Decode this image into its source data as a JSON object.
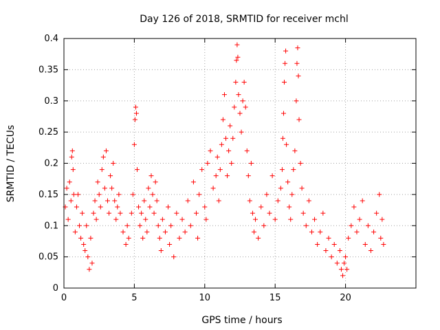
{
  "chart_data": {
    "type": "scatter",
    "title": "Day 126 of 2018, SRMTID for receiver mchl",
    "xlabel": "GPS time / hours",
    "ylabel": "SRMTID / TECUs",
    "xlim": [
      0,
      25
    ],
    "ylim": [
      0,
      0.4
    ],
    "x_ticks": [
      0,
      5,
      10,
      15,
      20
    ],
    "x_tick_labels": [
      "0",
      "5",
      "10",
      "15",
      "20"
    ],
    "y_ticks": [
      0,
      0.05,
      0.1,
      0.15,
      0.2,
      0.25,
      0.3,
      0.35,
      0.4
    ],
    "y_tick_labels": [
      "0",
      "0.05",
      "0.1",
      "0.15",
      "0.2",
      "0.25",
      "0.3",
      "0.35",
      "0.4"
    ],
    "grid": true,
    "legend": "none",
    "marker": "+",
    "colors": {
      "marker": "#ff0000",
      "grid": "#a0a0a0",
      "axis": "#000000"
    },
    "series": [
      {
        "name": "SRMTID",
        "points": [
          [
            0.1,
            0.13
          ],
          [
            0.2,
            0.16
          ],
          [
            0.3,
            0.11
          ],
          [
            0.4,
            0.17
          ],
          [
            0.5,
            0.14
          ],
          [
            0.55,
            0.21
          ],
          [
            0.6,
            0.22
          ],
          [
            0.65,
            0.19
          ],
          [
            0.7,
            0.15
          ],
          [
            0.8,
            0.09
          ],
          [
            0.9,
            0.13
          ],
          [
            1.0,
            0.15
          ],
          [
            1.1,
            0.1
          ],
          [
            1.2,
            0.08
          ],
          [
            1.3,
            0.12
          ],
          [
            1.4,
            0.07
          ],
          [
            1.5,
            0.06
          ],
          [
            1.6,
            0.1
          ],
          [
            1.7,
            0.05
          ],
          [
            1.8,
            0.03
          ],
          [
            1.9,
            0.08
          ],
          [
            2.0,
            0.04
          ],
          [
            2.1,
            0.12
          ],
          [
            2.2,
            0.14
          ],
          [
            2.3,
            0.11
          ],
          [
            2.4,
            0.17
          ],
          [
            2.5,
            0.15
          ],
          [
            2.6,
            0.13
          ],
          [
            2.7,
            0.19
          ],
          [
            2.8,
            0.21
          ],
          [
            2.9,
            0.16
          ],
          [
            3.0,
            0.22
          ],
          [
            3.1,
            0.14
          ],
          [
            3.2,
            0.12
          ],
          [
            3.3,
            0.18
          ],
          [
            3.4,
            0.16
          ],
          [
            3.5,
            0.2
          ],
          [
            3.6,
            0.14
          ],
          [
            3.7,
            0.11
          ],
          [
            3.8,
            0.13
          ],
          [
            3.9,
            0.15
          ],
          [
            4.0,
            0.12
          ],
          [
            4.2,
            0.09
          ],
          [
            4.4,
            0.07
          ],
          [
            4.5,
            0.1
          ],
          [
            4.6,
            0.08
          ],
          [
            4.8,
            0.12
          ],
          [
            4.9,
            0.15
          ],
          [
            5.0,
            0.23
          ],
          [
            5.05,
            0.27
          ],
          [
            5.1,
            0.29
          ],
          [
            5.15,
            0.28
          ],
          [
            5.2,
            0.19
          ],
          [
            5.3,
            0.13
          ],
          [
            5.4,
            0.1
          ],
          [
            5.5,
            0.12
          ],
          [
            5.6,
            0.08
          ],
          [
            5.7,
            0.14
          ],
          [
            5.8,
            0.11
          ],
          [
            5.9,
            0.09
          ],
          [
            6.0,
            0.16
          ],
          [
            6.1,
            0.13
          ],
          [
            6.2,
            0.18
          ],
          [
            6.3,
            0.15
          ],
          [
            6.4,
            0.12
          ],
          [
            6.5,
            0.17
          ],
          [
            6.6,
            0.14
          ],
          [
            6.7,
            0.1
          ],
          [
            6.8,
            0.08
          ],
          [
            6.9,
            0.06
          ],
          [
            7.0,
            0.11
          ],
          [
            7.2,
            0.09
          ],
          [
            7.4,
            0.13
          ],
          [
            7.5,
            0.07
          ],
          [
            7.6,
            0.1
          ],
          [
            7.8,
            0.05
          ],
          [
            8.0,
            0.12
          ],
          [
            8.2,
            0.08
          ],
          [
            8.4,
            0.11
          ],
          [
            8.6,
            0.09
          ],
          [
            8.8,
            0.14
          ],
          [
            9.0,
            0.1
          ],
          [
            9.2,
            0.17
          ],
          [
            9.4,
            0.12
          ],
          [
            9.5,
            0.08
          ],
          [
            9.6,
            0.15
          ],
          [
            9.8,
            0.19
          ],
          [
            10.0,
            0.13
          ],
          [
            10.1,
            0.11
          ],
          [
            10.2,
            0.2
          ],
          [
            10.4,
            0.22
          ],
          [
            10.6,
            0.16
          ],
          [
            10.8,
            0.18
          ],
          [
            10.9,
            0.21
          ],
          [
            11.0,
            0.14
          ],
          [
            11.1,
            0.19
          ],
          [
            11.2,
            0.23
          ],
          [
            11.3,
            0.27
          ],
          [
            11.4,
            0.31
          ],
          [
            11.5,
            0.24
          ],
          [
            11.6,
            0.18
          ],
          [
            11.7,
            0.22
          ],
          [
            11.8,
            0.26
          ],
          [
            11.9,
            0.2
          ],
          [
            12.0,
            0.24
          ],
          [
            12.1,
            0.29
          ],
          [
            12.2,
            0.33
          ],
          [
            12.25,
            0.365
          ],
          [
            12.3,
            0.39
          ],
          [
            12.35,
            0.37
          ],
          [
            12.4,
            0.31
          ],
          [
            12.5,
            0.28
          ],
          [
            12.6,
            0.25
          ],
          [
            12.7,
            0.3
          ],
          [
            12.8,
            0.33
          ],
          [
            12.9,
            0.29
          ],
          [
            13.0,
            0.22
          ],
          [
            13.1,
            0.18
          ],
          [
            13.2,
            0.14
          ],
          [
            13.3,
            0.2
          ],
          [
            13.4,
            0.12
          ],
          [
            13.5,
            0.09
          ],
          [
            13.6,
            0.11
          ],
          [
            13.8,
            0.08
          ],
          [
            14.0,
            0.13
          ],
          [
            14.2,
            0.1
          ],
          [
            14.4,
            0.15
          ],
          [
            14.6,
            0.12
          ],
          [
            14.8,
            0.18
          ],
          [
            15.0,
            0.11
          ],
          [
            15.2,
            0.14
          ],
          [
            15.4,
            0.16
          ],
          [
            15.5,
            0.19
          ],
          [
            15.55,
            0.24
          ],
          [
            15.6,
            0.28
          ],
          [
            15.65,
            0.33
          ],
          [
            15.7,
            0.36
          ],
          [
            15.75,
            0.38
          ],
          [
            15.8,
            0.23
          ],
          [
            15.9,
            0.17
          ],
          [
            16.0,
            0.13
          ],
          [
            16.1,
            0.11
          ],
          [
            16.2,
            0.15
          ],
          [
            16.3,
            0.19
          ],
          [
            16.4,
            0.22
          ],
          [
            16.5,
            0.3
          ],
          [
            16.55,
            0.36
          ],
          [
            16.6,
            0.385
          ],
          [
            16.65,
            0.34
          ],
          [
            16.7,
            0.27
          ],
          [
            16.8,
            0.2
          ],
          [
            16.9,
            0.16
          ],
          [
            17.0,
            0.12
          ],
          [
            17.2,
            0.1
          ],
          [
            17.4,
            0.14
          ],
          [
            17.6,
            0.09
          ],
          [
            17.8,
            0.11
          ],
          [
            18.0,
            0.07
          ],
          [
            18.2,
            0.09
          ],
          [
            18.4,
            0.12
          ],
          [
            18.6,
            0.06
          ],
          [
            18.8,
            0.08
          ],
          [
            19.0,
            0.05
          ],
          [
            19.2,
            0.07
          ],
          [
            19.4,
            0.04
          ],
          [
            19.6,
            0.06
          ],
          [
            19.7,
            0.03
          ],
          [
            19.8,
            0.02
          ],
          [
            19.9,
            0.04
          ],
          [
            20.0,
            0.05
          ],
          [
            20.1,
            0.03
          ],
          [
            20.2,
            0.08
          ],
          [
            20.4,
            0.1
          ],
          [
            20.6,
            0.13
          ],
          [
            20.8,
            0.09
          ],
          [
            21.0,
            0.11
          ],
          [
            21.2,
            0.14
          ],
          [
            21.4,
            0.07
          ],
          [
            21.6,
            0.1
          ],
          [
            21.8,
            0.06
          ],
          [
            22.0,
            0.09
          ],
          [
            22.2,
            0.12
          ],
          [
            22.4,
            0.15
          ],
          [
            22.5,
            0.08
          ],
          [
            22.6,
            0.11
          ],
          [
            22.7,
            0.07
          ]
        ]
      }
    ]
  }
}
